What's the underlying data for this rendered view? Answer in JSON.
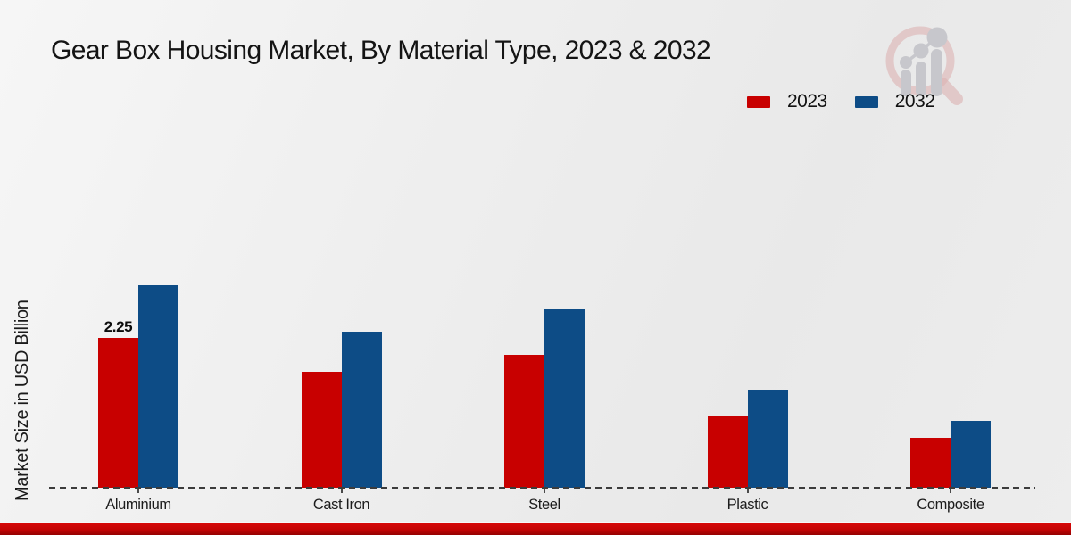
{
  "title": "Gear Box Housing Market, By Material Type, 2023 & 2032",
  "watermark": {
    "name": "market-research-magnifier-growth-logo"
  },
  "colors": {
    "series_2023": "#c80000",
    "series_2032": "#0d4c86",
    "background": "#ededed",
    "bottom_bar": "#c20404",
    "axis": "#3c3c3c",
    "text": "#1a1a1a"
  },
  "chart_data": {
    "type": "bar",
    "title": "Gear Box Housing Market, By Material Type, 2023 & 2032",
    "xlabel": "",
    "ylabel": "Market Size in USD Billion",
    "categories": [
      "Aluminium",
      "Cast Iron",
      "Steel",
      "Plastic",
      "Composite"
    ],
    "series": [
      {
        "name": "2023",
        "color": "#c80000",
        "values": [
          2.25,
          1.75,
          2.0,
          1.07,
          0.75
        ]
      },
      {
        "name": "2032",
        "color": "#0d4c86",
        "values": [
          3.05,
          2.35,
          2.7,
          1.48,
          1.0
        ]
      }
    ],
    "ylim": [
      0,
      3.6
    ],
    "grid": false,
    "axis_style": "dashed-baseline-only",
    "legend_position": "top-right",
    "data_labels": [
      {
        "category": "Aluminium",
        "series": "2023",
        "text": "2.25"
      }
    ]
  }
}
